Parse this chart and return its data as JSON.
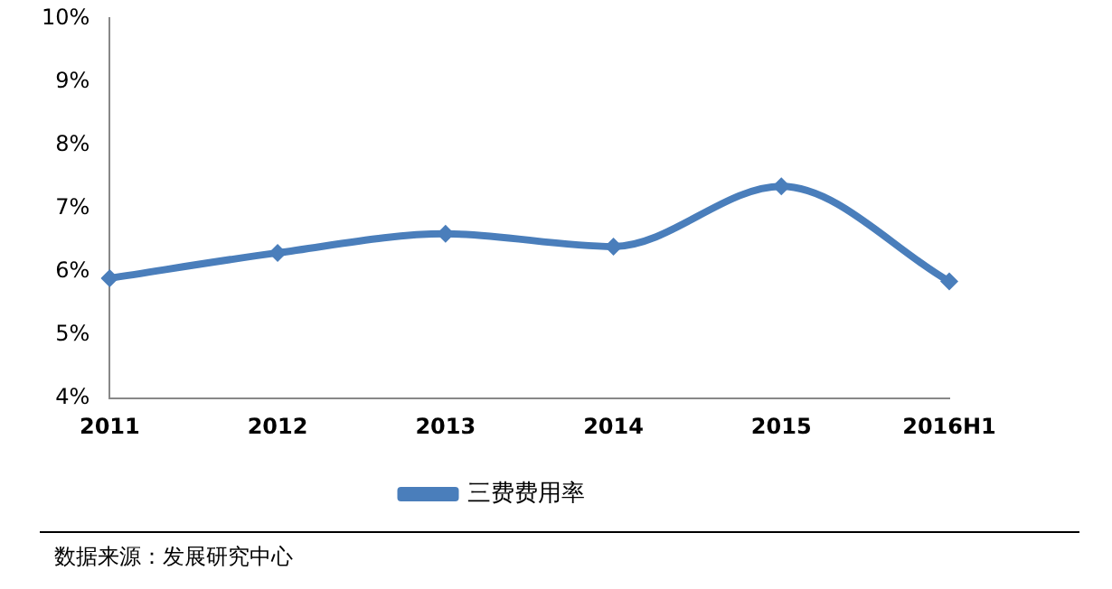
{
  "chart_data": {
    "type": "line",
    "categories": [
      "2011",
      "2012",
      "2013",
      "2014",
      "2015",
      "2016H1"
    ],
    "series": [
      {
        "name": "三费费用率",
        "color": "#4a7ebb",
        "values": [
          5.9,
          6.3,
          6.6,
          6.4,
          7.35,
          5.85
        ]
      }
    ],
    "ylim": [
      4,
      10
    ],
    "yticks": [
      {
        "value": 4,
        "label": "4%"
      },
      {
        "value": 5,
        "label": "5%"
      },
      {
        "value": 6,
        "label": "6%"
      },
      {
        "value": 7,
        "label": "7%"
      },
      {
        "value": 8,
        "label": "8%"
      },
      {
        "value": 9,
        "label": "9%"
      },
      {
        "value": 10,
        "label": "10%"
      }
    ],
    "grid": false,
    "legend": "bottom",
    "marker": "diamond",
    "line_style": "solid",
    "annotations": [
      "数据来源：发展研究中心"
    ]
  }
}
